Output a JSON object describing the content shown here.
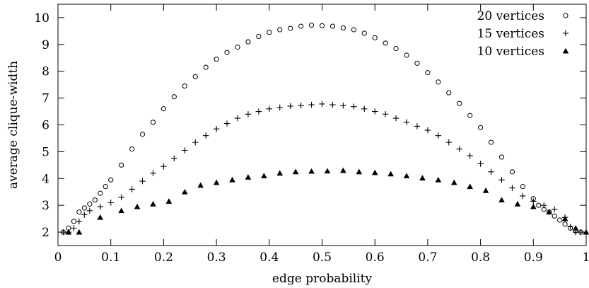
{
  "chart_data": {
    "type": "scatter",
    "xlabel": "edge probability",
    "ylabel": "average clique-width",
    "xlim": [
      0,
      1
    ],
    "ylim": [
      1.5,
      10.5
    ],
    "xticks": [
      "0",
      "0.1",
      "0.2",
      "0.3",
      "0.4",
      "0.5",
      "0.6",
      "0.7",
      "0.8",
      "0.9",
      "1"
    ],
    "yticks": [
      "2",
      "3",
      "4",
      "5",
      "6",
      "7",
      "8",
      "9",
      "10"
    ],
    "legend_position": "top-right",
    "grid": false,
    "series": [
      {
        "name": "20 vertices",
        "marker": "circle",
        "x": [
          0.01,
          0.02,
          0.03,
          0.04,
          0.05,
          0.06,
          0.07,
          0.08,
          0.09,
          0.1,
          0.12,
          0.14,
          0.16,
          0.18,
          0.2,
          0.22,
          0.24,
          0.26,
          0.28,
          0.3,
          0.32,
          0.34,
          0.36,
          0.38,
          0.4,
          0.42,
          0.44,
          0.46,
          0.48,
          0.5,
          0.52,
          0.54,
          0.56,
          0.58,
          0.6,
          0.62,
          0.64,
          0.66,
          0.68,
          0.7,
          0.72,
          0.74,
          0.76,
          0.78,
          0.8,
          0.82,
          0.84,
          0.86,
          0.88,
          0.9,
          0.91,
          0.92,
          0.93,
          0.94,
          0.95,
          0.96,
          0.97,
          0.98,
          0.99
        ],
        "y": [
          2.0,
          2.15,
          2.4,
          2.75,
          2.9,
          3.05,
          3.2,
          3.45,
          3.7,
          3.95,
          4.5,
          5.1,
          5.65,
          6.1,
          6.6,
          7.05,
          7.45,
          7.8,
          8.15,
          8.45,
          8.7,
          8.9,
          9.1,
          9.3,
          9.45,
          9.55,
          9.6,
          9.68,
          9.72,
          9.7,
          9.68,
          9.62,
          9.55,
          9.42,
          9.25,
          9.05,
          8.85,
          8.6,
          8.3,
          7.95,
          7.6,
          7.2,
          6.8,
          6.35,
          5.9,
          5.35,
          4.8,
          4.25,
          3.7,
          3.25,
          3.0,
          2.85,
          2.75,
          2.6,
          2.45,
          2.3,
          2.15,
          2.05,
          2.0
        ]
      },
      {
        "name": "15 vertices",
        "marker": "plus",
        "x": [
          0.01,
          0.02,
          0.03,
          0.04,
          0.05,
          0.06,
          0.08,
          0.1,
          0.12,
          0.14,
          0.16,
          0.18,
          0.2,
          0.22,
          0.24,
          0.26,
          0.28,
          0.3,
          0.32,
          0.34,
          0.36,
          0.38,
          0.4,
          0.42,
          0.44,
          0.46,
          0.48,
          0.5,
          0.52,
          0.54,
          0.56,
          0.58,
          0.6,
          0.62,
          0.64,
          0.66,
          0.68,
          0.7,
          0.72,
          0.74,
          0.76,
          0.78,
          0.8,
          0.82,
          0.84,
          0.86,
          0.88,
          0.9,
          0.92,
          0.94,
          0.96,
          0.97,
          0.98,
          0.99
        ],
        "y": [
          2.0,
          2.0,
          2.15,
          2.4,
          2.65,
          2.8,
          2.95,
          3.1,
          3.3,
          3.6,
          3.9,
          4.2,
          4.45,
          4.75,
          5.05,
          5.35,
          5.6,
          5.85,
          6.05,
          6.25,
          6.4,
          6.5,
          6.6,
          6.65,
          6.7,
          6.72,
          6.75,
          6.78,
          6.75,
          6.72,
          6.68,
          6.6,
          6.5,
          6.4,
          6.25,
          6.1,
          5.95,
          5.8,
          5.6,
          5.35,
          5.1,
          4.85,
          4.55,
          4.25,
          3.95,
          3.65,
          3.35,
          3.15,
          3.0,
          2.85,
          2.55,
          2.2,
          2.0,
          2.0
        ]
      },
      {
        "name": "10 vertices",
        "marker": "triangle",
        "x": [
          0.02,
          0.04,
          0.08,
          0.12,
          0.15,
          0.18,
          0.21,
          0.24,
          0.27,
          0.3,
          0.33,
          0.36,
          0.39,
          0.42,
          0.45,
          0.48,
          0.51,
          0.54,
          0.57,
          0.6,
          0.63,
          0.66,
          0.69,
          0.72,
          0.75,
          0.78,
          0.81,
          0.84,
          0.87,
          0.9,
          0.93,
          0.96,
          0.98,
          1.0
        ],
        "y": [
          2.0,
          2.0,
          2.55,
          2.8,
          2.95,
          3.05,
          3.15,
          3.5,
          3.75,
          3.85,
          3.95,
          4.05,
          4.1,
          4.2,
          4.25,
          4.27,
          4.28,
          4.3,
          4.25,
          4.22,
          4.17,
          4.1,
          4.02,
          3.95,
          3.85,
          3.7,
          3.55,
          3.2,
          3.05,
          2.95,
          2.75,
          2.5,
          2.15,
          2.0
        ]
      }
    ]
  }
}
